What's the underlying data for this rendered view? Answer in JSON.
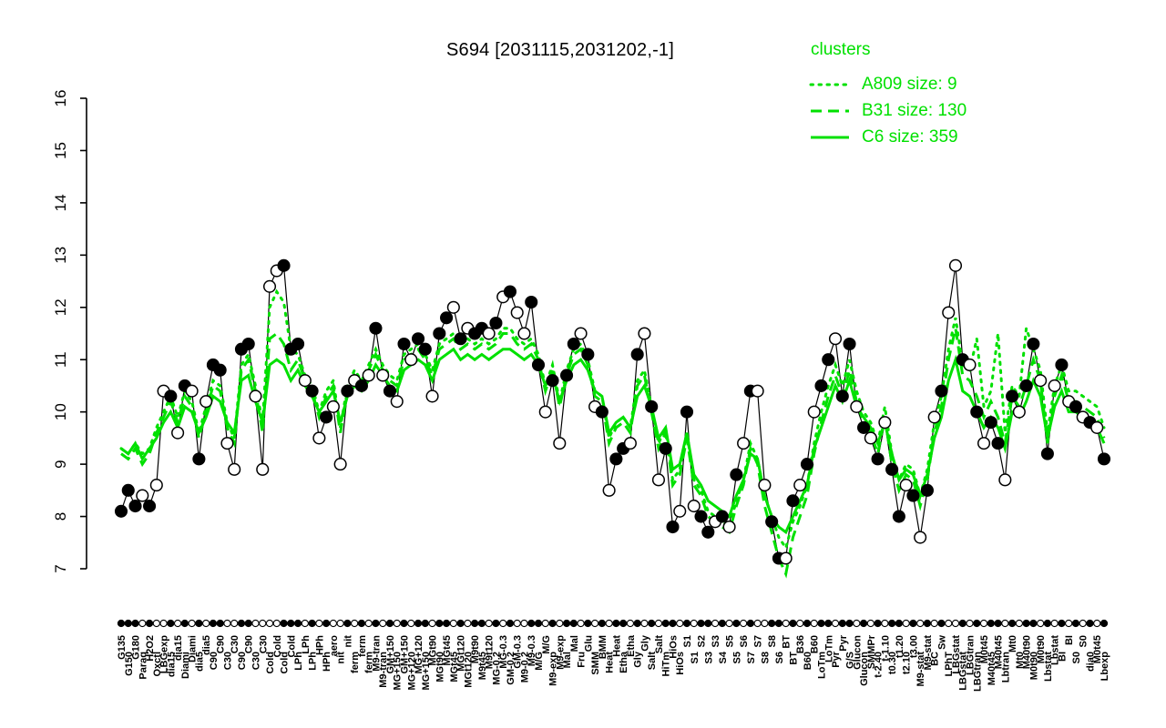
{
  "title": "S694 [2031115,2031202,-1]",
  "colors": {
    "cluster": "#00E000",
    "profile": "#000000",
    "open_fill": "#ffffff"
  },
  "legend": {
    "title": "clusters",
    "entries": [
      {
        "label": "A809 size: 9",
        "style": "dotted"
      },
      {
        "label": "B31 size: 130",
        "style": "dashed"
      },
      {
        "label": "C6 size: 359",
        "style": "solid"
      }
    ]
  },
  "chart_data": {
    "type": "line",
    "title": "S694 [2031115,2031202,-1]",
    "ylabel": "",
    "xlabel": "",
    "ylim": [
      7,
      16
    ],
    "yticks": [
      7,
      8,
      9,
      10,
      11,
      12,
      13,
      14,
      15,
      16
    ],
    "legend_position": "top-right",
    "grid": false,
    "categories": [
      "G135",
      "G150",
      "G180",
      "Paraq",
      "H2O2",
      "Oxctl",
      "LBGexp",
      "dia15",
      "dia15",
      "Diami",
      "Diami",
      "dia5",
      "dia5",
      "C90",
      "C90",
      "C30",
      "C30",
      "C90",
      "C90",
      "C30",
      "C30",
      "Cold",
      "Cold",
      "Cold",
      "Cold",
      "LPh",
      "LPh",
      "LPh",
      "HPh",
      "HPh",
      "aero",
      "nit",
      "nit",
      "ferm",
      "ferm",
      "ferm",
      "M9-tran",
      "M9-tran",
      "GM+150",
      "MG+150",
      "GM+150",
      "MG+120",
      "MG+120",
      "MG+150",
      "MGt90",
      "MGt90",
      "MGt45",
      "MGt45",
      "MGt120",
      "MGt120",
      "M9t90",
      "M9t45",
      "M9t120",
      "MG-0.2",
      "MG-0.3",
      "GM-0.2",
      "GM-0.3",
      "M9-0.2",
      "M9-0.3",
      "M/G",
      "M/G",
      "M9-exp",
      "M9-exp",
      "Mal",
      "Mal",
      "Fru",
      "Glu",
      "SMM",
      "BMM",
      "Heat",
      "Heat",
      "Etha",
      "Etha",
      "Gly",
      "Gly",
      "Salt",
      "Salt",
      "HiTm",
      "HiOs",
      "HiOs",
      "S1",
      "S1",
      "S2",
      "S3",
      "S3",
      "S4",
      "S5",
      "S5",
      "S6",
      "S7",
      "S7",
      "S8",
      "S8",
      "S6",
      "BT",
      "BT",
      "B36",
      "B60",
      "B60",
      "LoTm",
      "LoTm",
      "Pyr",
      "Pyr",
      "G/S",
      "Glucon",
      "Glucon",
      "SMMPr",
      "t-2.40",
      "t-1.10",
      "t0.30",
      "t1.20",
      "t2.10",
      "t3.00",
      "M9-stat",
      "M9-stat",
      "BC",
      "Sw",
      "LPhT",
      "LBGstat",
      "LBGstat",
      "LBGtran",
      "LBGtran",
      "M0t45",
      "M40t45",
      "M40t45",
      "Lbtran",
      "Mt0",
      "Mt0",
      "M40t90",
      "M0t90",
      "M0t90",
      "Lbstat",
      "Lbstat",
      "BI",
      "BI",
      "S0",
      "S0",
      "dia0",
      "M0t45",
      "Lbexp"
    ],
    "profile": {
      "name": "S694",
      "values": [
        8.1,
        8.5,
        8.2,
        8.4,
        8.2,
        8.6,
        10.4,
        10.3,
        9.6,
        10.5,
        10.4,
        9.1,
        10.2,
        10.9,
        10.8,
        9.4,
        8.9,
        11.2,
        11.3,
        10.3,
        8.9,
        12.4,
        12.7,
        12.8,
        11.2,
        11.3,
        10.6,
        10.4,
        9.5,
        9.9,
        10.1,
        9.0,
        10.4,
        10.6,
        10.5,
        10.7,
        11.6,
        10.7,
        10.4,
        10.2,
        11.3,
        11.0,
        11.4,
        11.2,
        10.3,
        11.5,
        11.8,
        12.0,
        11.4,
        11.6,
        11.5,
        11.6,
        11.5,
        11.7,
        12.2,
        12.3,
        11.9,
        11.5,
        12.1,
        10.9,
        10.0,
        10.6,
        9.4,
        10.7,
        11.3,
        11.5,
        11.1,
        10.1,
        10.0,
        8.5,
        9.1,
        9.3,
        9.4,
        11.1,
        11.5,
        10.1,
        8.7,
        9.3,
        7.8,
        8.1,
        10.0,
        8.2,
        8.0,
        7.7,
        7.9,
        8.0,
        7.8,
        8.8,
        9.4,
        10.4,
        10.4,
        8.6,
        7.9,
        7.2,
        7.2,
        8.3,
        8.6,
        9.0,
        10.0,
        10.5,
        11.0,
        11.4,
        10.3,
        11.3,
        10.1,
        9.7,
        9.5,
        9.1,
        9.8,
        8.9,
        8.0,
        8.6,
        8.4,
        7.6,
        8.5,
        9.9,
        10.4,
        11.9,
        12.8,
        11.0,
        10.9,
        10.0,
        9.4,
        9.8,
        9.4,
        8.7,
        10.3,
        10.0,
        10.5,
        11.3,
        10.6,
        9.2,
        10.5,
        10.9,
        10.2,
        10.1,
        9.9,
        9.8,
        9.7,
        9.1
      ],
      "fills": [
        1,
        1,
        1,
        0,
        1,
        0,
        0,
        1,
        0,
        1,
        0,
        1,
        0,
        1,
        1,
        0,
        0,
        1,
        1,
        0,
        0,
        0,
        0,
        1,
        1,
        1,
        0,
        1,
        0,
        1,
        0,
        0,
        1,
        0,
        1,
        0,
        1,
        0,
        1,
        0,
        1,
        0,
        1,
        1,
        0,
        1,
        1,
        0,
        1,
        0,
        1,
        1,
        0,
        1,
        0,
        1,
        0,
        0,
        1,
        1,
        0,
        1,
        0,
        1,
        1,
        0,
        1,
        0,
        1,
        0,
        1,
        1,
        0,
        1,
        0,
        1,
        0,
        1,
        1,
        0,
        1,
        0,
        1,
        1,
        0,
        1,
        0,
        1,
        0,
        1,
        0,
        0,
        1,
        1,
        0,
        1,
        0,
        1,
        0,
        1,
        1,
        0,
        1,
        1,
        0,
        1,
        0,
        1,
        0,
        1,
        1,
        0,
        1,
        0,
        1,
        0,
        1,
        0,
        0,
        1,
        0,
        1,
        0,
        1,
        1,
        0,
        1,
        0,
        1,
        1,
        0,
        1,
        0,
        1,
        0,
        1,
        0,
        1,
        0,
        1
      ]
    },
    "series": [
      {
        "name": "A809",
        "size": 9,
        "style": "dotted",
        "values": [
          9.3,
          9.2,
          9.4,
          9.2,
          9.3,
          9.7,
          10.0,
          10.3,
          9.9,
          10.4,
          10.2,
          9.6,
          10.1,
          10.6,
          10.5,
          9.8,
          9.5,
          10.9,
          11.1,
          10.5,
          9.8,
          12.0,
          12.3,
          12.1,
          11.2,
          11.1,
          10.7,
          10.5,
          10.0,
          10.4,
          10.6,
          9.7,
          10.5,
          10.8,
          10.6,
          10.9,
          11.2,
          10.9,
          10.7,
          10.6,
          11.1,
          11.2,
          11.3,
          11.1,
          10.8,
          11.3,
          11.4,
          11.5,
          11.3,
          11.4,
          11.3,
          11.4,
          11.3,
          11.4,
          11.6,
          11.6,
          11.4,
          11.3,
          11.4,
          11.1,
          10.5,
          10.9,
          10.2,
          10.8,
          11.2,
          11.3,
          11.0,
          10.4,
          10.3,
          9.5,
          9.8,
          9.9,
          9.7,
          10.6,
          10.8,
          10.1,
          9.4,
          9.7,
          8.7,
          8.9,
          9.6,
          8.7,
          8.5,
          8.1,
          8.0,
          7.9,
          7.8,
          8.3,
          8.7,
          9.4,
          9.1,
          8.4,
          8.0,
          7.6,
          7.4,
          7.9,
          8.2,
          8.6,
          9.4,
          10.0,
          10.5,
          10.9,
          10.5,
          11.0,
          10.4,
          10.0,
          9.8,
          9.4,
          10.1,
          9.2,
          8.7,
          9.0,
          8.9,
          8.4,
          8.9,
          9.8,
          10.3,
          11.2,
          11.8,
          10.9,
          10.8,
          11.4,
          10.1,
          10.4,
          11.5,
          9.6,
          10.5,
          10.3,
          11.6,
          11.2,
          10.8,
          9.6,
          10.5,
          10.9,
          10.4,
          10.4,
          10.3,
          10.2,
          10.1,
          9.7
        ]
      },
      {
        "name": "B31",
        "size": 130,
        "style": "dashed",
        "values": [
          9.2,
          9.1,
          9.3,
          9.0,
          9.2,
          9.6,
          9.9,
          10.2,
          9.8,
          10.3,
          10.1,
          9.5,
          10.0,
          10.5,
          10.4,
          9.7,
          9.4,
          10.8,
          11.0,
          10.4,
          9.6,
          11.4,
          11.5,
          11.3,
          10.8,
          11.0,
          10.6,
          10.4,
          9.9,
          10.3,
          10.5,
          9.6,
          10.4,
          10.7,
          10.5,
          10.8,
          11.1,
          10.8,
          10.6,
          10.5,
          11.0,
          11.1,
          11.2,
          11.0,
          10.7,
          11.2,
          11.3,
          11.4,
          11.2,
          11.3,
          11.2,
          11.3,
          11.2,
          11.3,
          11.5,
          11.5,
          11.3,
          11.2,
          11.3,
          11.0,
          10.4,
          10.8,
          10.1,
          10.7,
          11.1,
          11.2,
          10.9,
          10.3,
          10.2,
          9.4,
          9.7,
          9.8,
          9.6,
          10.5,
          10.7,
          10.0,
          9.3,
          9.6,
          8.6,
          8.8,
          9.5,
          8.6,
          8.4,
          8.0,
          7.9,
          7.8,
          7.7,
          8.2,
          8.6,
          9.3,
          9.0,
          8.2,
          7.7,
          7.2,
          6.9,
          7.6,
          8.0,
          8.4,
          9.2,
          9.8,
          10.3,
          10.7,
          10.3,
          10.8,
          10.2,
          9.8,
          9.6,
          9.2,
          9.9,
          9.0,
          8.5,
          8.8,
          8.7,
          8.2,
          8.7,
          9.6,
          10.1,
          11.0,
          11.6,
          10.7,
          10.6,
          10.3,
          9.9,
          10.2,
          9.9,
          9.4,
          10.3,
          10.1,
          10.5,
          11.0,
          10.6,
          9.4,
          10.3,
          10.7,
          10.2,
          10.2,
          10.1,
          10.0,
          9.9,
          9.5
        ]
      },
      {
        "name": "C6",
        "size": 359,
        "style": "solid",
        "values": [
          9.3,
          9.2,
          9.4,
          9.1,
          9.3,
          9.5,
          9.8,
          10.0,
          9.7,
          10.1,
          10.0,
          9.6,
          9.9,
          10.3,
          10.2,
          9.8,
          9.6,
          10.6,
          10.7,
          10.2,
          9.8,
          10.9,
          11.0,
          10.9,
          10.6,
          10.8,
          10.5,
          10.3,
          10.0,
          10.2,
          10.4,
          9.8,
          10.3,
          10.5,
          10.4,
          10.6,
          10.9,
          10.7,
          10.5,
          10.4,
          10.8,
          10.9,
          11.0,
          10.9,
          10.6,
          11.0,
          11.1,
          11.2,
          11.0,
          11.1,
          11.0,
          11.1,
          11.0,
          11.1,
          11.2,
          11.2,
          11.1,
          11.0,
          11.1,
          10.9,
          10.5,
          10.7,
          10.2,
          10.6,
          10.9,
          11.0,
          10.8,
          10.4,
          10.3,
          9.6,
          9.8,
          9.9,
          9.7,
          10.3,
          10.5,
          10.1,
          9.5,
          9.7,
          8.9,
          9.0,
          9.6,
          8.8,
          8.6,
          8.3,
          8.2,
          8.1,
          8.0,
          8.4,
          8.7,
          9.2,
          9.1,
          8.4,
          8.0,
          7.8,
          7.7,
          8.0,
          8.3,
          8.6,
          9.3,
          9.7,
          10.1,
          10.5,
          10.2,
          10.6,
          10.1,
          9.9,
          9.7,
          9.4,
          9.8,
          9.2,
          8.7,
          8.9,
          8.8,
          8.4,
          8.8,
          9.5,
          9.9,
          10.6,
          11.0,
          10.4,
          10.3,
          10.0,
          9.7,
          9.9,
          9.7,
          9.3,
          10.0,
          9.9,
          10.2,
          10.6,
          10.3,
          9.5,
          10.1,
          10.4,
          10.0,
          10.0,
          9.9,
          9.8,
          9.7,
          9.4
        ]
      }
    ]
  }
}
